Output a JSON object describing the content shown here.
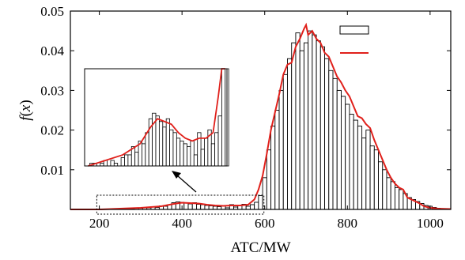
{
  "chart_data": {
    "type": "bar",
    "title": "",
    "xlabel": "ATC/MW",
    "ylabel": "f(x)",
    "ylabel_parts": {
      "func": "f",
      "open": "(",
      "var": "x",
      "close": ")"
    },
    "xlim": [
      130,
      1050
    ],
    "ylim": [
      0,
      0.05
    ],
    "xticks": [
      200,
      400,
      600,
      800,
      1000
    ],
    "yticks": [
      0.01,
      0.02,
      0.03,
      0.04,
      0.05
    ],
    "ytick_labels": [
      "0.01",
      "0.02",
      "0.03",
      "0.04",
      "0.05"
    ],
    "grid": false,
    "legend_position": "top-right",
    "bin_width": 10,
    "series": [
      {
        "kind": "histogram",
        "color": "#000000",
        "fill": "#ffffff",
        "bins": [
          {
            "x": 210,
            "y": 0.0001
          },
          {
            "x": 220,
            "y": 0.0001
          },
          {
            "x": 240,
            "y": 0.0001
          },
          {
            "x": 250,
            "y": 0.0002
          },
          {
            "x": 270,
            "y": 0.0002
          },
          {
            "x": 280,
            "y": 0.0001
          },
          {
            "x": 300,
            "y": 0.0003
          },
          {
            "x": 310,
            "y": 0.0004
          },
          {
            "x": 320,
            "y": 0.0004
          },
          {
            "x": 330,
            "y": 0.0007
          },
          {
            "x": 340,
            "y": 0.0005
          },
          {
            "x": 350,
            "y": 0.0009
          },
          {
            "x": 360,
            "y": 0.0008
          },
          {
            "x": 370,
            "y": 0.0012
          },
          {
            "x": 380,
            "y": 0.0017
          },
          {
            "x": 390,
            "y": 0.0019
          },
          {
            "x": 400,
            "y": 0.0018
          },
          {
            "x": 410,
            "y": 0.0016
          },
          {
            "x": 420,
            "y": 0.0014
          },
          {
            "x": 430,
            "y": 0.0017
          },
          {
            "x": 440,
            "y": 0.0013
          },
          {
            "x": 450,
            "y": 0.0012
          },
          {
            "x": 460,
            "y": 0.001
          },
          {
            "x": 470,
            "y": 0.0009
          },
          {
            "x": 480,
            "y": 0.0008
          },
          {
            "x": 490,
            "y": 0.0007
          },
          {
            "x": 500,
            "y": 0.0009
          },
          {
            "x": 510,
            "y": 0.0004
          },
          {
            "x": 520,
            "y": 0.0012
          },
          {
            "x": 530,
            "y": 0.0006
          },
          {
            "x": 540,
            "y": 0.001
          },
          {
            "x": 550,
            "y": 0.0013
          },
          {
            "x": 560,
            "y": 0.0008
          },
          {
            "x": 570,
            "y": 0.0012
          },
          {
            "x": 580,
            "y": 0.0018
          },
          {
            "x": 590,
            "y": 0.0035
          },
          {
            "x": 600,
            "y": 0.008
          },
          {
            "x": 610,
            "y": 0.015
          },
          {
            "x": 620,
            "y": 0.021
          },
          {
            "x": 630,
            "y": 0.025
          },
          {
            "x": 640,
            "y": 0.03
          },
          {
            "x": 650,
            "y": 0.034
          },
          {
            "x": 660,
            "y": 0.038
          },
          {
            "x": 670,
            "y": 0.042
          },
          {
            "x": 680,
            "y": 0.0445
          },
          {
            "x": 690,
            "y": 0.04
          },
          {
            "x": 700,
            "y": 0.042
          },
          {
            "x": 710,
            "y": 0.045
          },
          {
            "x": 720,
            "y": 0.044
          },
          {
            "x": 730,
            "y": 0.0425
          },
          {
            "x": 740,
            "y": 0.041
          },
          {
            "x": 750,
            "y": 0.038
          },
          {
            "x": 760,
            "y": 0.035
          },
          {
            "x": 770,
            "y": 0.033
          },
          {
            "x": 780,
            "y": 0.03
          },
          {
            "x": 790,
            "y": 0.0285
          },
          {
            "x": 800,
            "y": 0.0265
          },
          {
            "x": 810,
            "y": 0.024
          },
          {
            "x": 820,
            "y": 0.0225
          },
          {
            "x": 830,
            "y": 0.021
          },
          {
            "x": 840,
            "y": 0.018
          },
          {
            "x": 850,
            "y": 0.02
          },
          {
            "x": 860,
            "y": 0.016
          },
          {
            "x": 870,
            "y": 0.015
          },
          {
            "x": 880,
            "y": 0.012
          },
          {
            "x": 890,
            "y": 0.01
          },
          {
            "x": 900,
            "y": 0.008
          },
          {
            "x": 910,
            "y": 0.007
          },
          {
            "x": 920,
            "y": 0.0055
          },
          {
            "x": 930,
            "y": 0.005
          },
          {
            "x": 940,
            "y": 0.004
          },
          {
            "x": 950,
            "y": 0.003
          },
          {
            "x": 960,
            "y": 0.0025
          },
          {
            "x": 970,
            "y": 0.002
          },
          {
            "x": 980,
            "y": 0.0015
          },
          {
            "x": 990,
            "y": 0.001
          },
          {
            "x": 1000,
            "y": 0.0008
          },
          {
            "x": 1010,
            "y": 0.0005
          },
          {
            "x": 1020,
            "y": 0.0003
          }
        ]
      },
      {
        "kind": "line",
        "color": "#e0201b",
        "points": [
          [
            130,
            0.0
          ],
          [
            200,
            0.0
          ],
          [
            250,
            0.0002
          ],
          [
            300,
            0.0004
          ],
          [
            350,
            0.0008
          ],
          [
            380,
            0.0014
          ],
          [
            400,
            0.0017
          ],
          [
            420,
            0.0016
          ],
          [
            440,
            0.0015
          ],
          [
            460,
            0.0012
          ],
          [
            480,
            0.001
          ],
          [
            500,
            0.0009
          ],
          [
            520,
            0.001
          ],
          [
            540,
            0.001
          ],
          [
            560,
            0.0012
          ],
          [
            575,
            0.0025
          ],
          [
            585,
            0.005
          ],
          [
            595,
            0.0085
          ],
          [
            605,
            0.014
          ],
          [
            615,
            0.02
          ],
          [
            625,
            0.0245
          ],
          [
            635,
            0.029
          ],
          [
            645,
            0.034
          ],
          [
            655,
            0.0365
          ],
          [
            665,
            0.037
          ],
          [
            675,
            0.041
          ],
          [
            685,
            0.043
          ],
          [
            695,
            0.0455
          ],
          [
            700,
            0.0465
          ],
          [
            705,
            0.044
          ],
          [
            715,
            0.045
          ],
          [
            725,
            0.043
          ],
          [
            735,
            0.042
          ],
          [
            745,
            0.0395
          ],
          [
            755,
            0.0385
          ],
          [
            765,
            0.036
          ],
          [
            775,
            0.0335
          ],
          [
            785,
            0.032
          ],
          [
            795,
            0.03
          ],
          [
            805,
            0.0285
          ],
          [
            815,
            0.026
          ],
          [
            825,
            0.0235
          ],
          [
            835,
            0.023
          ],
          [
            845,
            0.0215
          ],
          [
            855,
            0.0205
          ],
          [
            865,
            0.0175
          ],
          [
            875,
            0.015
          ],
          [
            885,
            0.0125
          ],
          [
            895,
            0.01
          ],
          [
            905,
            0.008
          ],
          [
            915,
            0.0065
          ],
          [
            925,
            0.0055
          ],
          [
            935,
            0.005
          ],
          [
            945,
            0.003
          ],
          [
            955,
            0.0025
          ],
          [
            965,
            0.002
          ],
          [
            975,
            0.0015
          ],
          [
            985,
            0.0008
          ],
          [
            1000,
            0.0004
          ],
          [
            1020,
            0.0002
          ],
          [
            1050,
            0.0001
          ]
        ]
      }
    ],
    "inset": {
      "source_xlim": [
        190,
        600
      ],
      "source_ylim": [
        0,
        0.0032
      ],
      "ylim": [
        0,
        0.0035
      ],
      "arrow": true
    }
  }
}
